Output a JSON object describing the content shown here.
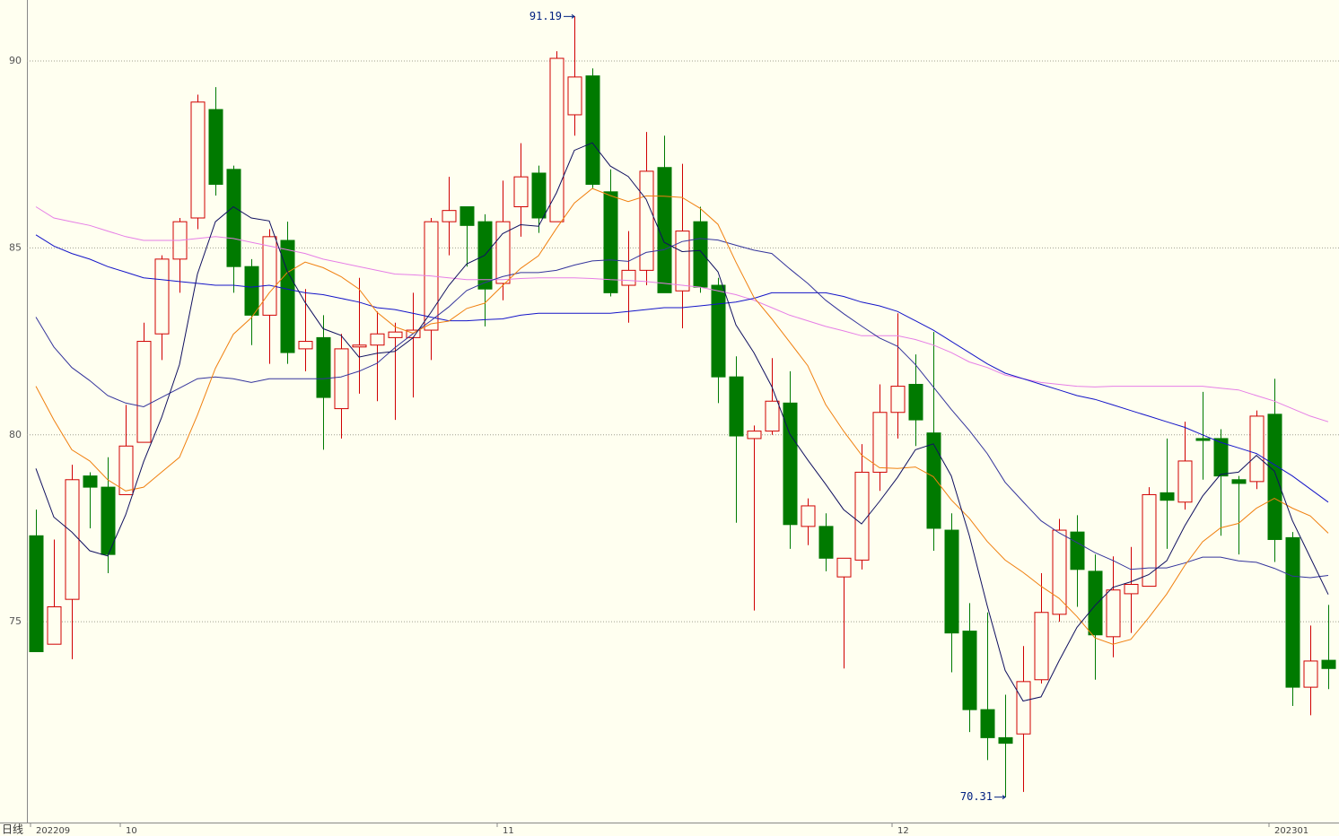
{
  "chart_data": {
    "type": "candlestick",
    "period_label": "日线",
    "categories": [
      "202209",
      null,
      null,
      null,
      null,
      "10",
      null,
      null,
      null,
      null,
      null,
      null,
      null,
      null,
      null,
      null,
      null,
      null,
      null,
      null,
      null,
      null,
      null,
      null,
      null,
      null,
      "11",
      null,
      null,
      null,
      null,
      null,
      null,
      null,
      null,
      null,
      null,
      null,
      null,
      null,
      null,
      null,
      null,
      null,
      null,
      null,
      null,
      null,
      "12",
      null,
      null,
      null,
      null,
      null,
      null,
      null,
      null,
      null,
      null,
      null,
      null,
      null,
      null,
      null,
      null,
      null,
      null,
      null,
      null,
      "202301",
      null,
      null,
      null
    ],
    "open": [
      77.3,
      74.4,
      75.6,
      78.9,
      78.6,
      78.4,
      79.8,
      82.7,
      84.7,
      85.8,
      88.7,
      87.1,
      84.5,
      83.2,
      85.2,
      82.3,
      82.6,
      80.7,
      82.35,
      82.4,
      82.6,
      82.6,
      82.8,
      85.7,
      86.1,
      85.7,
      84.05,
      86.1,
      87.0,
      85.7,
      88.56,
      89.6,
      86.5,
      84.0,
      84.4,
      87.15,
      83.85,
      85.7,
      84.0,
      81.55,
      79.9,
      80.1,
      80.85,
      77.55,
      77.55,
      76.2,
      76.65,
      79.0,
      80.6,
      81.35,
      80.05,
      77.45,
      74.75,
      72.65,
      71.9,
      72.0,
      73.45,
      75.2,
      77.4,
      76.35,
      74.6,
      75.75,
      75.95,
      78.45,
      78.2,
      79.9,
      79.9,
      78.8,
      78.75,
      80.55,
      77.25,
      73.25,
      73.97
    ],
    "high": [
      78.0,
      77.2,
      79.2,
      79.0,
      79.4,
      80.8,
      83.0,
      84.8,
      85.8,
      89.1,
      89.3,
      87.2,
      84.7,
      85.5,
      85.7,
      83.9,
      83.2,
      82.7,
      84.2,
      83.3,
      83.0,
      83.8,
      85.8,
      86.9,
      86.1,
      85.9,
      86.8,
      87.8,
      87.2,
      90.26,
      91.19,
      89.8,
      87.1,
      85.45,
      88.1,
      88.0,
      87.25,
      86.1,
      84.2,
      82.1,
      80.25,
      82.05,
      81.7,
      78.3,
      77.9,
      76.7,
      79.75,
      81.35,
      83.25,
      82.15,
      82.75,
      77.9,
      75.5,
      75.25,
      73.05,
      74.35,
      76.3,
      77.75,
      77.85,
      76.8,
      76.75,
      77.0,
      78.6,
      79.9,
      80.35,
      81.15,
      80.15,
      78.9,
      80.65,
      81.5,
      77.4,
      74.9,
      75.45
    ],
    "low": [
      74.2,
      74.4,
      74.0,
      77.5,
      76.3,
      78.4,
      79.8,
      82.0,
      83.8,
      85.5,
      86.4,
      83.8,
      82.4,
      81.9,
      81.9,
      81.7,
      79.6,
      79.9,
      81.1,
      80.9,
      80.4,
      81.0,
      82.0,
      84.8,
      84.5,
      82.9,
      83.6,
      85.3,
      85.4,
      85.7,
      88.0,
      86.6,
      83.7,
      83.0,
      84.0,
      83.8,
      82.85,
      83.8,
      80.85,
      77.65,
      75.3,
      80.0,
      76.95,
      77.05,
      76.35,
      73.75,
      76.4,
      78.5,
      79.9,
      79.7,
      76.9,
      73.65,
      72.05,
      71.3,
      70.31,
      70.45,
      73.35,
      75.0,
      75.4,
      73.45,
      74.05,
      74.7,
      75.95,
      76.95,
      78.0,
      78.8,
      77.3,
      76.8,
      78.55,
      76.6,
      72.75,
      72.5,
      73.2
    ],
    "close": [
      74.2,
      75.4,
      78.8,
      78.6,
      76.8,
      79.7,
      82.5,
      84.7,
      85.7,
      88.9,
      86.7,
      84.5,
      83.2,
      85.3,
      82.2,
      82.5,
      81.0,
      82.3,
      82.4,
      82.7,
      82.75,
      82.8,
      85.7,
      86.0,
      85.6,
      83.9,
      85.7,
      86.9,
      85.8,
      90.07,
      89.57,
      86.7,
      83.8,
      84.4,
      87.05,
      83.8,
      85.45,
      83.95,
      81.55,
      79.97,
      80.1,
      80.9,
      77.6,
      78.1,
      76.7,
      76.7,
      79.0,
      80.6,
      81.3,
      80.4,
      77.5,
      74.7,
      72.65,
      71.9,
      71.75,
      73.4,
      75.25,
      77.45,
      76.4,
      74.65,
      75.85,
      76.0,
      78.4,
      78.25,
      79.3,
      79.85,
      78.9,
      78.7,
      80.5,
      77.2,
      73.25,
      73.95,
      73.75
    ],
    "up_color": "#d00000",
    "down_color": "#007a00",
    "lines": [
      {
        "color": "#e67ee6",
        "values": [
          86.1,
          85.8,
          85.7,
          85.6,
          85.45,
          85.3,
          85.2,
          85.2,
          85.2,
          85.25,
          85.3,
          85.25,
          85.15,
          85.05,
          84.95,
          84.85,
          84.7,
          84.6,
          84.5,
          84.4,
          84.3,
          84.28,
          84.25,
          84.2,
          84.15,
          84.15,
          84.15,
          84.18,
          84.2,
          84.2,
          84.2,
          84.18,
          84.15,
          84.13,
          84.1,
          84.05,
          84.0,
          83.95,
          83.85,
          83.75,
          83.6,
          83.4,
          83.2,
          83.05,
          82.9,
          82.78,
          82.65,
          82.65,
          82.65,
          82.55,
          82.4,
          82.2,
          81.95,
          81.8,
          81.6,
          81.5,
          81.4,
          81.35,
          81.3,
          81.28,
          81.3,
          81.3,
          81.3,
          81.3,
          81.3,
          81.3,
          81.25,
          81.2,
          81.05,
          80.9,
          80.7,
          80.5,
          80.35
        ]
      },
      {
        "color": "#1414c8",
        "values": [
          85.35,
          85.05,
          84.85,
          84.7,
          84.5,
          84.35,
          84.2,
          84.15,
          84.1,
          84.05,
          84.0,
          84.0,
          83.95,
          84.0,
          83.9,
          83.8,
          83.75,
          83.65,
          83.55,
          83.4,
          83.35,
          83.25,
          83.15,
          83.05,
          83.05,
          83.08,
          83.1,
          83.2,
          83.25,
          83.25,
          83.25,
          83.25,
          83.25,
          83.3,
          83.35,
          83.4,
          83.4,
          83.45,
          83.5,
          83.55,
          83.65,
          83.8,
          83.8,
          83.8,
          83.8,
          83.7,
          83.55,
          83.45,
          83.3,
          83.05,
          82.8,
          82.5,
          82.2,
          81.9,
          81.65,
          81.5,
          81.35,
          81.2,
          81.05,
          80.95,
          80.8,
          80.65,
          80.5,
          80.35,
          80.2,
          80.0,
          79.8,
          79.65,
          79.5,
          79.2,
          78.9,
          78.55,
          78.2
        ]
      },
      {
        "color": "#34349c",
        "values": [
          83.15,
          82.35,
          81.8,
          81.45,
          81.05,
          80.85,
          80.75,
          81.0,
          81.25,
          81.5,
          81.55,
          81.5,
          81.4,
          81.5,
          81.5,
          81.5,
          81.5,
          81.55,
          81.7,
          81.91,
          82.33,
          82.7,
          83.05,
          83.42,
          83.86,
          84.07,
          84.23,
          84.34,
          84.34,
          84.4,
          84.54,
          84.65,
          84.68,
          84.64,
          84.88,
          84.95,
          85.17,
          85.25,
          85.21,
          85.07,
          84.94,
          84.85,
          84.44,
          84.05,
          83.6,
          83.24,
          82.91,
          82.59,
          82.37,
          81.88,
          81.28,
          80.68,
          80.12,
          79.5,
          78.73,
          78.21,
          77.7,
          77.38,
          77.12,
          76.85,
          76.64,
          76.4,
          76.44,
          76.44,
          76.57,
          76.73,
          76.73,
          76.63,
          76.59,
          76.43,
          76.22,
          76.18,
          76.24
        ]
      },
      {
        "color": "#f08010",
        "values": [
          81.3,
          80.4,
          79.6,
          79.3,
          78.8,
          78.5,
          78.6,
          79.0,
          79.4,
          80.53,
          81.78,
          82.69,
          83.13,
          83.8,
          84.34,
          84.62,
          84.47,
          84.23,
          83.9,
          83.28,
          82.89,
          82.72,
          82.97,
          83.04,
          83.38,
          83.52,
          83.99,
          84.45,
          84.79,
          85.52,
          86.2,
          86.59,
          86.4,
          86.24,
          86.39,
          86.38,
          86.35,
          86.06,
          85.63,
          84.62,
          83.68,
          83.1,
          82.48,
          81.85,
          80.81,
          80.1,
          79.46,
          79.12,
          79.1,
          79.14,
          78.88,
          78.26,
          77.77,
          77.15,
          76.65,
          76.32,
          75.95,
          75.63,
          75.14,
          74.57,
          74.4,
          74.53,
          75.11,
          75.74,
          76.5,
          77.14,
          77.51,
          77.63,
          78.04,
          78.3,
          78.04,
          77.83,
          77.37
        ]
      },
      {
        "color": "#101060",
        "values": [
          79.1,
          77.8,
          77.4,
          76.9,
          76.76,
          77.86,
          79.28,
          80.46,
          81.88,
          84.3,
          85.7,
          86.1,
          85.8,
          85.72,
          84.38,
          83.54,
          82.84,
          82.66,
          82.08,
          82.18,
          82.23,
          82.59,
          83.27,
          83.99,
          84.57,
          84.8,
          85.38,
          85.62,
          85.58,
          86.47,
          87.61,
          87.81,
          87.19,
          86.91,
          86.3,
          85.15,
          84.9,
          84.93,
          84.36,
          82.94,
          82.2,
          81.29,
          80.02,
          79.33,
          78.68,
          78.0,
          77.62,
          78.22,
          78.86,
          79.6,
          79.76,
          78.9,
          77.31,
          75.43,
          73.7,
          72.88,
          72.99,
          73.95,
          74.85,
          75.43,
          75.92,
          76.07,
          76.26,
          76.63,
          77.56,
          78.36,
          78.94,
          79.0,
          79.45,
          79.03,
          77.71,
          76.72,
          75.73
        ]
      }
    ],
    "ylim": [
      69.63,
      91.63
    ],
    "yticks": [
      75,
      80,
      85,
      90
    ],
    "grid": true
  }
}
